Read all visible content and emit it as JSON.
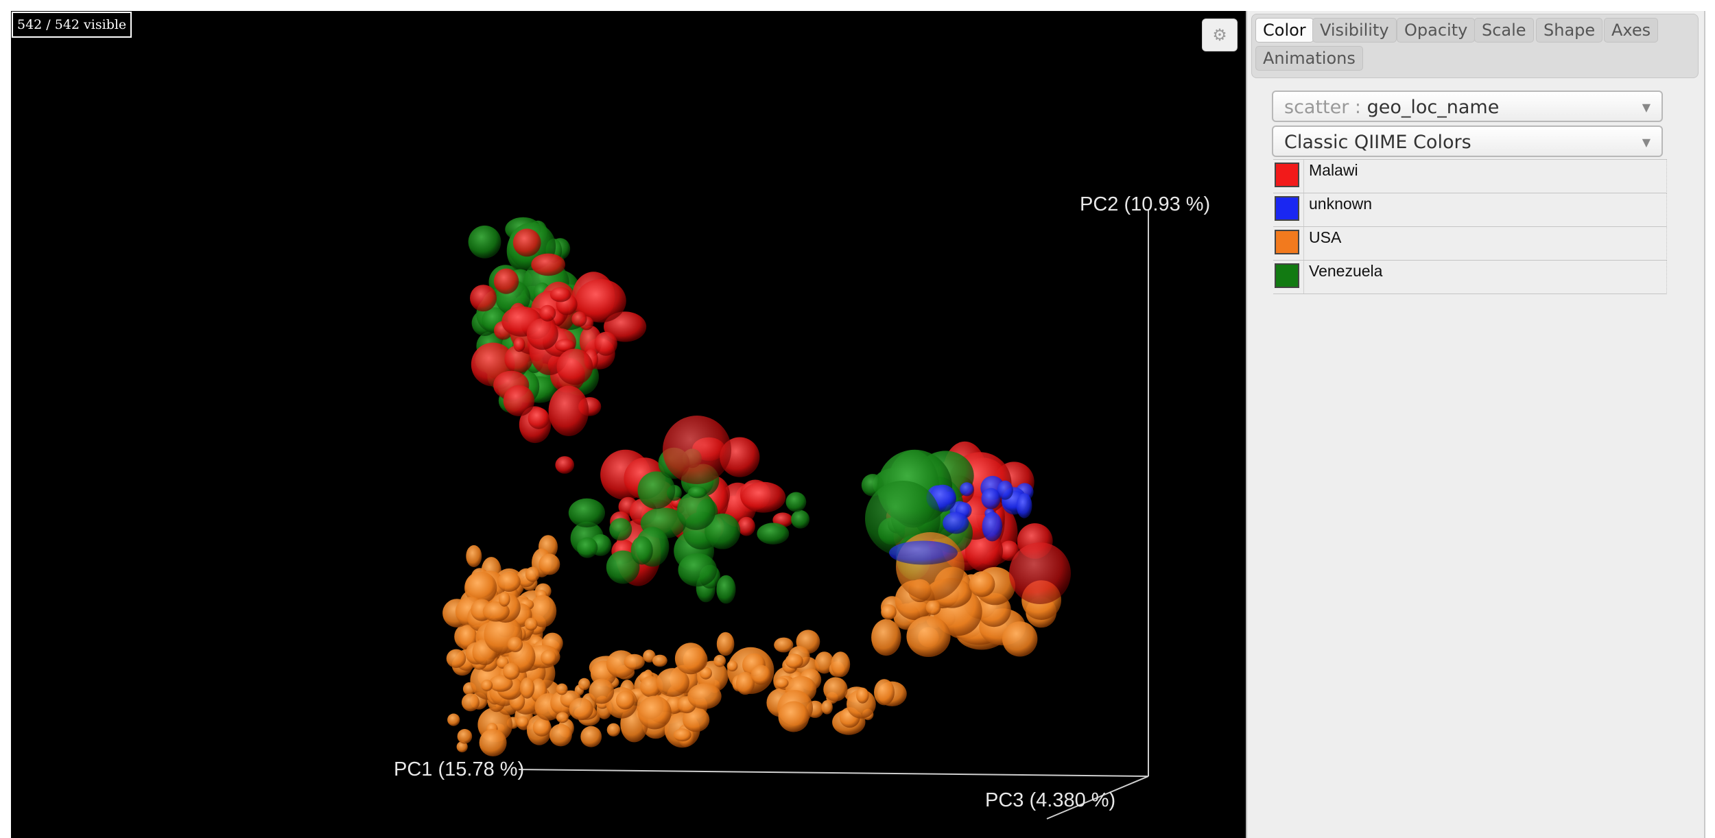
{
  "counter": "542 / 542 visible",
  "axes": {
    "pc1": "PC1 (15.78 %)",
    "pc2": "PC2 (10.93 %)",
    "pc3": "PC3 (4.380 %)"
  },
  "settings_icon": "gear-icon",
  "tabs": [
    "Color",
    "Visibility",
    "Opacity",
    "Scale",
    "Shape",
    "Axes",
    "Animations"
  ],
  "active_tab": "Color",
  "color_by": {
    "prefix": "scatter :",
    "value": "geo_loc_name"
  },
  "colormap": "Classic QIIME Colors",
  "legend": [
    {
      "label": "Malawi",
      "color": "#f21a1a"
    },
    {
      "label": "unknown",
      "color": "#1a27f2"
    },
    {
      "label": "USA",
      "color": "#f27a1e"
    },
    {
      "label": "Venezuela",
      "color": "#127a12"
    }
  ]
}
